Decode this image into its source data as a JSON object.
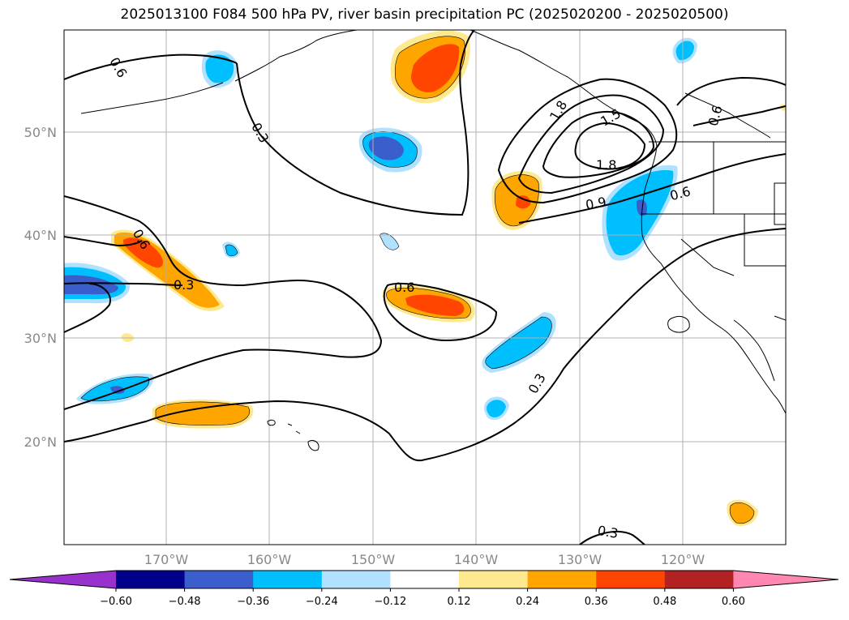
{
  "title": "2025013100 F084 500 hPa PV, river basin precipitation PC (2025020200 - 2025020500)",
  "map": {
    "lat_labels": [
      "50°N",
      "40°N",
      "30°N",
      "20°N"
    ],
    "lon_labels": [
      "170°W",
      "160°W",
      "150°W",
      "140°W",
      "130°W",
      "120°W"
    ],
    "grid": true
  },
  "pv_contour_labels": [
    "0.6",
    "0.3",
    "0.6",
    "0.3",
    "0.6",
    "0.3",
    "1.8",
    "1.5",
    "1.8",
    "0.9",
    "0.6",
    "0.6",
    "0.3",
    "0.3"
  ],
  "colorbar": {
    "ticks": [
      "−0.60",
      "−0.48",
      "−0.36",
      "−0.24",
      "−0.12",
      "0.12",
      "0.24",
      "0.36",
      "0.48",
      "0.60"
    ],
    "colors": {
      "below": "#9932cc",
      "b1": "#00008b",
      "b2": "#3a5fcd",
      "b3": "#00bfff",
      "b4": "#b0e2ff",
      "b5": "#ffffff",
      "b6": "#ffe98f",
      "b7": "#ffa500",
      "b8": "#ff4500",
      "b9": "#b22222",
      "above": "#ff87b2"
    }
  }
}
